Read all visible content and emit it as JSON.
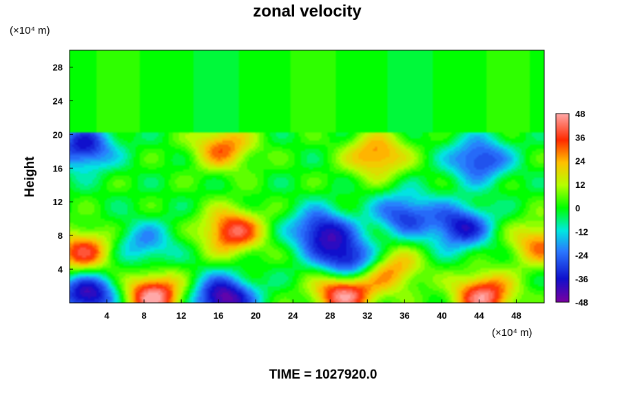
{
  "chart_data": {
    "type": "heatmap",
    "title": "zonal velocity",
    "ylabel": "Height",
    "x_unit": "(×10⁴ m)",
    "y_unit": "(×10⁴ m)",
    "xlim": [
      0,
      51
    ],
    "ylim": [
      0,
      30
    ],
    "x_ticks": [
      "4",
      "8",
      "12",
      "16",
      "20",
      "24",
      "28",
      "32",
      "36",
      "40",
      "44",
      "48"
    ],
    "x_tick_values": [
      4,
      8,
      12,
      16,
      20,
      24,
      28,
      32,
      36,
      40,
      44,
      48
    ],
    "y_ticks": [
      "4",
      "8",
      "12",
      "16",
      "20",
      "24",
      "28"
    ],
    "y_tick_values": [
      4,
      8,
      12,
      16,
      20,
      24,
      28
    ],
    "colorbar": {
      "range": [
        -48,
        48
      ],
      "tick_labels": [
        "48",
        "36",
        "24",
        "12",
        "0",
        "-12",
        "-24",
        "-36",
        "-48"
      ],
      "tick_values": [
        48,
        36,
        24,
        12,
        0,
        -12,
        -24,
        -36,
        -48
      ]
    },
    "field_features": [
      {
        "x": 17.5,
        "y": 8.5,
        "value": 40
      },
      {
        "x": 16.5,
        "y": 18.5,
        "value": 30
      },
      {
        "x": 33.0,
        "y": 17.5,
        "value": 30
      },
      {
        "x": 1.5,
        "y": 6.0,
        "value": 36
      },
      {
        "x": 50.5,
        "y": 7.0,
        "value": 28
      },
      {
        "x": 34.5,
        "y": 4.0,
        "value": 28
      },
      {
        "x": 29.5,
        "y": 1.2,
        "value": 48
      },
      {
        "x": 9.0,
        "y": 0.8,
        "value": 48
      },
      {
        "x": 44.5,
        "y": 0.8,
        "value": 44
      },
      {
        "x": 1.5,
        "y": 18.5,
        "value": -36
      },
      {
        "x": 44.0,
        "y": 17.0,
        "value": -32
      },
      {
        "x": 30.0,
        "y": 5.0,
        "value": -42
      },
      {
        "x": 27.0,
        "y": 8.5,
        "value": -38
      },
      {
        "x": 42.0,
        "y": 9.0,
        "value": -36
      },
      {
        "x": 36.0,
        "y": 10.5,
        "value": -30
      },
      {
        "x": 16.5,
        "y": 0.5,
        "value": -48
      },
      {
        "x": 2.0,
        "y": 1.0,
        "value": -44
      },
      {
        "x": 8.0,
        "y": 7.0,
        "value": -20
      }
    ]
  },
  "footer": "TIME = 1027920.0"
}
